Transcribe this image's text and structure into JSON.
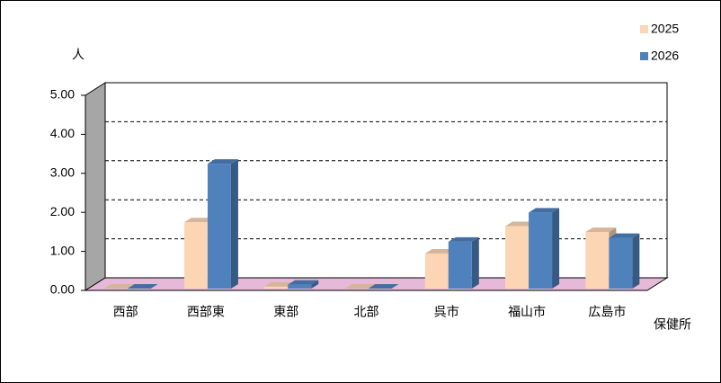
{
  "chart_data": {
    "type": "bar3d",
    "y_label": "人",
    "x_label": "保健所",
    "categories": [
      "西部",
      "西部東",
      "東部",
      "北部",
      "呉市",
      "福山市",
      "広島市"
    ],
    "series": [
      {
        "name": "2025",
        "color": "#fcd5b4",
        "values": [
          0,
          1.7,
          0.05,
          0,
          0.9,
          1.6,
          1.45
        ]
      },
      {
        "name": "2026",
        "color": "#4f81bd",
        "values": [
          0,
          3.2,
          0.1,
          0,
          1.2,
          1.95,
          1.3
        ]
      }
    ],
    "ylim": [
      0,
      5
    ],
    "yticks": [
      {
        "value": 0,
        "label": "0.00"
      },
      {
        "value": 1,
        "label": "1.00"
      },
      {
        "value": 2,
        "label": "2.00"
      },
      {
        "value": 3,
        "label": "3.00"
      },
      {
        "value": 4,
        "label": "4.00"
      },
      {
        "value": 5,
        "label": "5.00"
      }
    ],
    "grid": true
  }
}
